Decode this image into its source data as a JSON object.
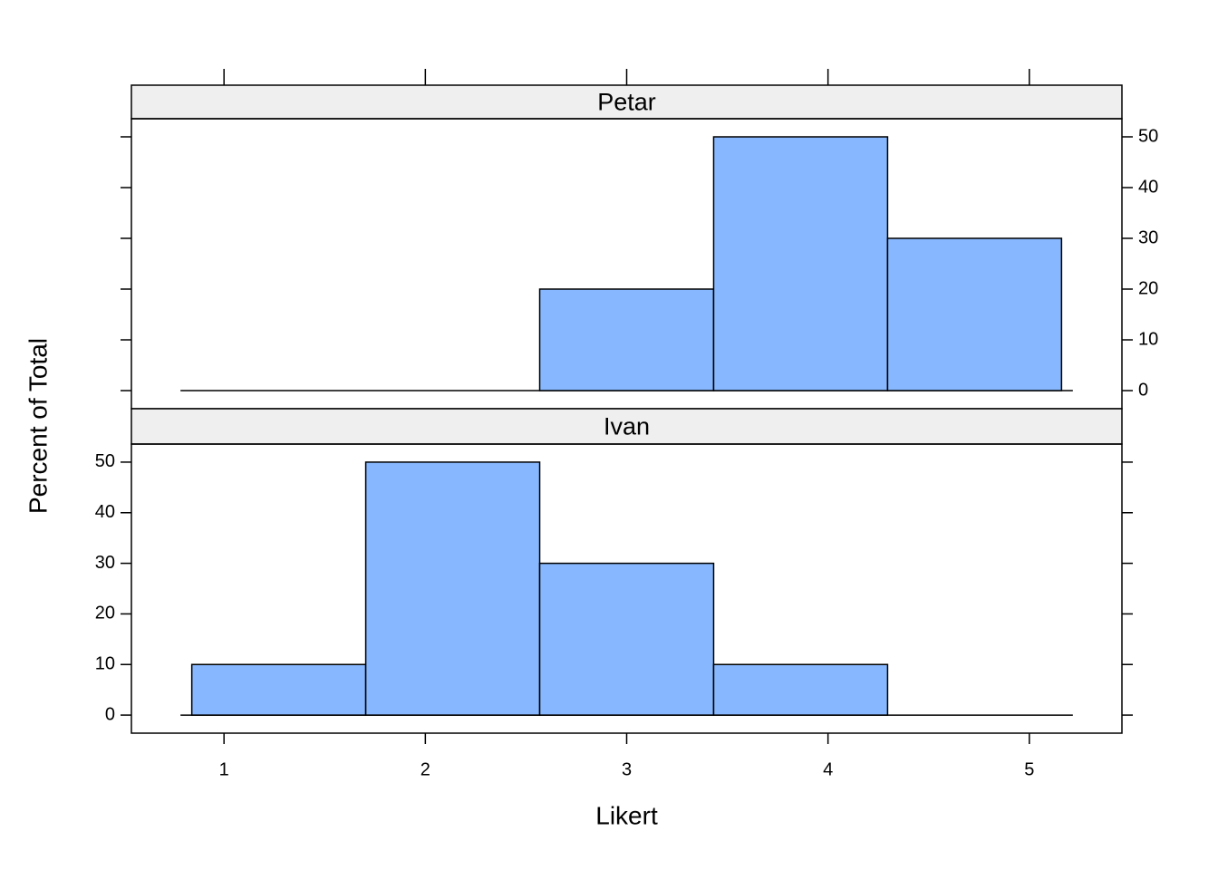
{
  "chart_data": [
    {
      "type": "histogram",
      "title": "Petar",
      "bins": [
        0.84,
        1.704,
        2.568,
        3.432,
        4.296,
        5.16
      ],
      "values": [
        0,
        0,
        20,
        50,
        30
      ],
      "color": "#87b7fe",
      "xlim": [
        0.54,
        5.46
      ],
      "ylim": [
        -3.57,
        53.57
      ],
      "yticks": [
        0,
        10,
        20,
        30,
        40,
        50
      ],
      "y_tick_side": "right"
    },
    {
      "type": "histogram",
      "title": "Ivan",
      "xlabel": "Likert",
      "ylabel": "Percent of Total",
      "bins": [
        0.84,
        1.704,
        2.568,
        3.432,
        4.296,
        5.16
      ],
      "values": [
        10,
        50,
        30,
        10,
        0
      ],
      "color": "#87b7fe",
      "xlim": [
        0.54,
        5.46
      ],
      "ylim": [
        -3.57,
        53.57
      ],
      "xticks": [
        1,
        2,
        3,
        4,
        5
      ],
      "yticks": [
        0,
        10,
        20,
        30,
        40,
        50
      ],
      "y_tick_side": "left"
    }
  ]
}
